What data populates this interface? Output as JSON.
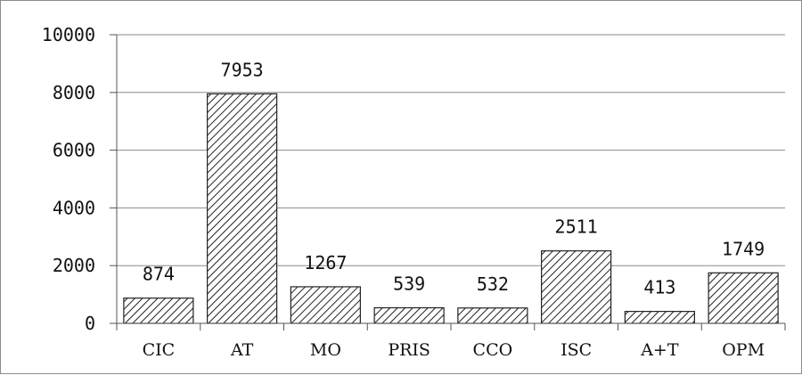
{
  "chart_data": {
    "type": "bar",
    "categories": [
      "CIC",
      "AT",
      "MO",
      "PRIS",
      "CCO",
      "ISC",
      "A+T",
      "OPM"
    ],
    "values": [
      874,
      7953,
      1267,
      539,
      532,
      2511,
      413,
      1749
    ],
    "data_labels": [
      "874",
      "7953",
      "1267",
      "539",
      "532",
      "2511",
      "413",
      "1749"
    ],
    "y_ticks": [
      "0",
      "2000",
      "4000",
      "6000",
      "8000",
      "10000"
    ],
    "ylim": [
      0,
      10000
    ],
    "grid": true,
    "fill_pattern": "diagonal-hatch",
    "colors": {
      "bar_fill": "#ffffff",
      "hatch": "#222222",
      "bar_stroke": "#222222",
      "grid": "#8a8a8a",
      "axis": "#555555"
    }
  }
}
